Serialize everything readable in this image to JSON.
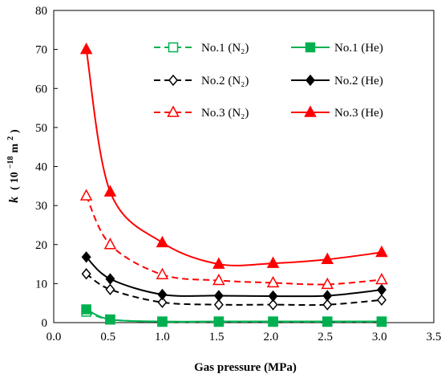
{
  "chart_data": {
    "type": "line",
    "xlabel": "Gas pressure (MPa)",
    "ylabel": {
      "symbol": "k",
      "open": "(",
      "base": "10",
      "exponent": "−18",
      "unit": "m",
      "unit_exponent": "2",
      "close": ")"
    },
    "xlim": [
      0.0,
      3.5
    ],
    "ylim": [
      0,
      80
    ],
    "xticks": [
      0.0,
      0.5,
      1.0,
      1.5,
      2.0,
      2.5,
      3.0,
      3.5
    ],
    "xtick_labels": [
      "0.0",
      "0.5",
      "1.0",
      "1.5",
      "2.0",
      "2.5",
      "3.0",
      "3.5"
    ],
    "yticks": [
      0,
      10,
      20,
      30,
      40,
      50,
      60,
      70,
      80
    ],
    "ytick_labels": [
      "0",
      "10",
      "20",
      "30",
      "40",
      "50",
      "60",
      "70",
      "80"
    ],
    "grid": false,
    "legend_position": "top-right",
    "series": [
      {
        "name": "No.1 (N₂)",
        "color": "#00b050",
        "line": "dashed",
        "marker": "square",
        "filled": false,
        "x": [
          0.3,
          0.52,
          1.0,
          1.52,
          2.02,
          2.52,
          3.02
        ],
        "y": [
          2.8,
          0.8,
          0.2,
          0.2,
          0.2,
          0.2,
          0.2
        ]
      },
      {
        "name": "No.1 (He)",
        "color": "#00b050",
        "line": "solid",
        "marker": "square",
        "filled": true,
        "x": [
          0.3,
          0.52,
          1.0,
          1.52,
          2.02,
          2.52,
          3.02
        ],
        "y": [
          3.4,
          0.8,
          0.3,
          0.3,
          0.3,
          0.3,
          0.3
        ]
      },
      {
        "name": "No.2 (N₂)",
        "color": "#000000",
        "line": "dashed",
        "marker": "diamond",
        "filled": false,
        "x": [
          0.3,
          0.52,
          1.0,
          1.52,
          2.02,
          2.52,
          3.02
        ],
        "y": [
          12.5,
          8.5,
          5.2,
          4.6,
          4.6,
          4.6,
          5.8
        ]
      },
      {
        "name": "No.2 (He)",
        "color": "#000000",
        "line": "solid",
        "marker": "diamond",
        "filled": true,
        "x": [
          0.3,
          0.52,
          1.0,
          1.52,
          2.02,
          2.52,
          3.02
        ],
        "y": [
          16.8,
          11.2,
          7.2,
          6.9,
          6.8,
          6.9,
          8.4
        ]
      },
      {
        "name": "No.3 (N₂)",
        "color": "#ff0000",
        "line": "dashed",
        "marker": "triangle",
        "filled": false,
        "x": [
          0.3,
          0.52,
          1.0,
          1.52,
          2.02,
          2.52,
          3.02
        ],
        "y": [
          32.5,
          20.0,
          12.3,
          10.8,
          10.2,
          9.8,
          11.0
        ]
      },
      {
        "name": "No.3 (He)",
        "color": "#ff0000",
        "line": "solid",
        "marker": "triangle",
        "filled": true,
        "x": [
          0.3,
          0.52,
          1.0,
          1.52,
          2.02,
          2.52,
          3.02
        ],
        "y": [
          70.0,
          33.5,
          20.5,
          15.0,
          15.2,
          16.2,
          18.0
        ]
      }
    ]
  }
}
